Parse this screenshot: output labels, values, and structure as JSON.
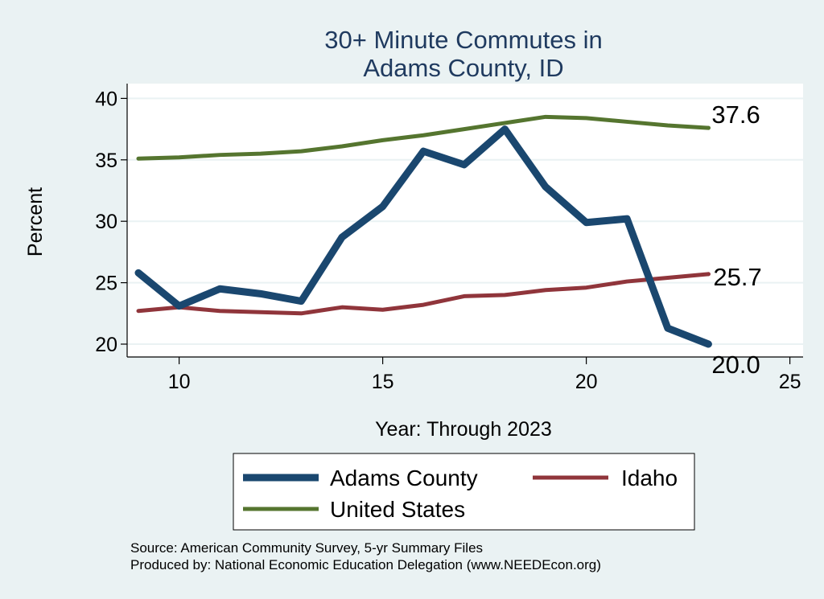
{
  "chart_data": {
    "type": "line",
    "title_lines": [
      "30+ Minute Commutes in",
      "Adams County, ID"
    ],
    "xlabel": "Year: Through 2023",
    "ylabel": "Percent",
    "xlim": [
      9,
      25
    ],
    "ylim": [
      19,
      40.5
    ],
    "xticks": [
      10,
      15,
      20,
      25
    ],
    "yticks": [
      20,
      25,
      30,
      35,
      40
    ],
    "grid": true,
    "legend_position": "bottom",
    "series": [
      {
        "name": "Adams County",
        "color": "#1a476f",
        "x": [
          9,
          10,
          11,
          12,
          13,
          14,
          15,
          16,
          17,
          18,
          19,
          20,
          21,
          22,
          23
        ],
        "y": [
          25.8,
          23.1,
          24.5,
          24.1,
          23.5,
          28.7,
          31.2,
          35.7,
          34.6,
          37.5,
          32.8,
          29.9,
          30.2,
          21.3,
          20.0
        ],
        "end_label": "20.0"
      },
      {
        "name": "Idaho",
        "color": "#90353b",
        "x": [
          9,
          10,
          11,
          12,
          13,
          14,
          15,
          16,
          17,
          18,
          19,
          20,
          21,
          22,
          23
        ],
        "y": [
          22.7,
          23.0,
          22.7,
          22.6,
          22.5,
          23.0,
          22.8,
          23.2,
          23.9,
          24.0,
          24.4,
          24.6,
          25.1,
          25.4,
          25.7
        ],
        "end_label": "25.7"
      },
      {
        "name": "United States",
        "color": "#55752f",
        "x": [
          9,
          10,
          11,
          12,
          13,
          14,
          15,
          16,
          17,
          18,
          19,
          20,
          21,
          22,
          23
        ],
        "y": [
          35.1,
          35.2,
          35.4,
          35.5,
          35.7,
          36.1,
          36.6,
          37.0,
          37.5,
          38.0,
          38.5,
          38.4,
          38.1,
          37.8,
          37.6
        ],
        "end_label": "37.6"
      }
    ]
  },
  "footnotes": {
    "source": "Source: American Community Survey, 5-yr Summary Files",
    "produced": "Produced by: National Economic Education Delegation (www.NEEDEcon.org)"
  }
}
